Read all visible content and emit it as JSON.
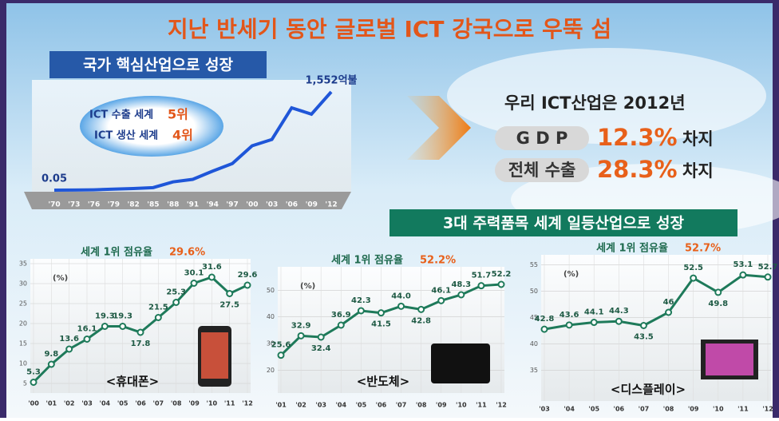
{
  "header": {
    "title": "지난 반세기 동안 글로벌 ICT 강국으로 우뚝 섬"
  },
  "sections": [
    "국가 핵심산업으로 성장",
    "3대 주력품목 세계 일등산업으로 성장"
  ],
  "rankings": [
    {
      "label": "ICT 수출 세계",
      "rank": "5위"
    },
    {
      "label": "ICT 생산 세계",
      "rank": "4위"
    }
  ],
  "summary": {
    "heading": "우리 ICT산업은 2012년",
    "rows": [
      {
        "label": "G D P",
        "value": "12.3%",
        "suffix": "차지"
      },
      {
        "label": "전체 수출",
        "value": "28.3%",
        "suffix": "차지"
      }
    ]
  },
  "chart_data": [
    {
      "type": "line",
      "color": "#1f56d8",
      "categories": [
        "'70",
        "'73",
        "'76",
        "'79",
        "'82",
        "'85",
        "'88",
        "'91",
        "'94",
        "'97",
        "'00",
        "'03",
        "'06",
        "'09",
        "'12"
      ],
      "values": [
        0.05,
        1,
        5,
        15,
        25,
        40,
        130,
        170,
        300,
        420,
        700,
        800,
        1300,
        1200,
        1552
      ],
      "value_labels": [
        "0.05",
        null,
        null,
        null,
        null,
        null,
        null,
        null,
        null,
        null,
        null,
        null,
        null,
        null,
        "1,552억불"
      ]
    },
    {
      "type": "line",
      "color": "#1e7a5a",
      "title": "세계 1위 점유율",
      "highlight": "29.6%",
      "unit_label": "(%)",
      "caption": "<휴대폰>",
      "categories": [
        "'00",
        "'01",
        "'02",
        "'03",
        "'04",
        "'05",
        "'06",
        "'07",
        "'08",
        "'09",
        "'10",
        "'11",
        "'12"
      ],
      "values": [
        5.3,
        9.8,
        13.6,
        16.1,
        19.3,
        19.3,
        17.8,
        21.5,
        25.3,
        30.1,
        31.6,
        27.5,
        29.6
      ],
      "ylim": [
        5,
        35
      ],
      "yticks": [
        5,
        10,
        15,
        20,
        25,
        30,
        35
      ]
    },
    {
      "type": "line",
      "color": "#1e7a5a",
      "title": "세계 1위 점유율",
      "highlight": "52.2%",
      "unit_label": "(%)",
      "caption": "<반도체>",
      "categories": [
        "'01",
        "'02",
        "'03",
        "'04",
        "'05",
        "'06",
        "'07",
        "'08",
        "'09",
        "'10",
        "'11",
        "'12"
      ],
      "values": [
        25.6,
        32.9,
        32.4,
        36.9,
        42.3,
        41.5,
        44.0,
        42.8,
        46.1,
        48.3,
        51.7,
        52.2
      ],
      "value_labels": [
        "25.6",
        "32.9",
        "32.4",
        "36.9",
        "42.3",
        "41.5",
        "44.0",
        "42.8",
        "46.1",
        "48.3",
        "51.7",
        "52.2"
      ],
      "ylim": [
        15,
        57
      ],
      "yticks": [
        20,
        30,
        40,
        50
      ]
    },
    {
      "type": "line",
      "color": "#1e7a5a",
      "title": "세계 1위 점유율",
      "highlight": "52.7%",
      "unit_label": "(%)",
      "caption": "<디스플레이>",
      "categories": [
        "'03",
        "'04",
        "'05",
        "'06",
        "'07",
        "'08",
        "'09",
        "'10",
        "'11",
        "'12"
      ],
      "values": [
        42.8,
        43.6,
        44.1,
        44.3,
        43.5,
        46,
        52.5,
        49.8,
        53.1,
        52.7
      ],
      "ylim": [
        31,
        56
      ],
      "yticks": [
        35,
        40,
        45,
        50,
        55
      ]
    }
  ]
}
